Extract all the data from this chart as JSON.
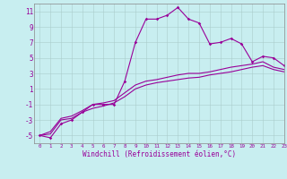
{
  "xlabel": "Windchill (Refroidissement éolien,°C)",
  "background_color": "#c8eef0",
  "line_color": "#990099",
  "x_hours": [
    0,
    1,
    2,
    3,
    4,
    5,
    6,
    7,
    8,
    9,
    10,
    11,
    12,
    13,
    14,
    15,
    16,
    17,
    18,
    19,
    20,
    21,
    22,
    23
  ],
  "y_windchill": [
    -5.0,
    -5.3,
    -3.5,
    -3.0,
    -2.0,
    -1.0,
    -1.0,
    -1.0,
    2.0,
    7.0,
    10.0,
    10.0,
    10.5,
    11.5,
    10.0,
    9.5,
    6.8,
    7.0,
    7.5,
    6.8,
    4.5,
    5.2,
    5.0,
    4.0
  ],
  "y_temperature": [
    -5.0,
    -4.5,
    -2.8,
    -2.5,
    -1.8,
    -1.0,
    -0.8,
    -0.5,
    0.5,
    1.5,
    2.0,
    2.2,
    2.5,
    2.8,
    3.0,
    3.0,
    3.2,
    3.5,
    3.8,
    4.0,
    4.2,
    4.5,
    3.8,
    3.5
  ],
  "y_line3": [
    -5.0,
    -4.8,
    -3.0,
    -2.8,
    -2.0,
    -1.5,
    -1.2,
    -0.8,
    0.0,
    1.0,
    1.5,
    1.8,
    2.0,
    2.2,
    2.4,
    2.5,
    2.8,
    3.0,
    3.2,
    3.5,
    3.8,
    4.0,
    3.5,
    3.2
  ],
  "ylim": [
    -6,
    12
  ],
  "yticks": [
    -5,
    -3,
    -1,
    1,
    3,
    5,
    7,
    9,
    11
  ],
  "xlim": [
    -0.5,
    23
  ],
  "xticks": [
    0,
    1,
    2,
    3,
    4,
    5,
    6,
    7,
    8,
    9,
    10,
    11,
    12,
    13,
    14,
    15,
    16,
    17,
    18,
    19,
    20,
    21,
    22,
    23
  ],
  "xlabel_fontsize": 5.5,
  "ytick_fontsize": 5.5,
  "xtick_fontsize": 4.2
}
